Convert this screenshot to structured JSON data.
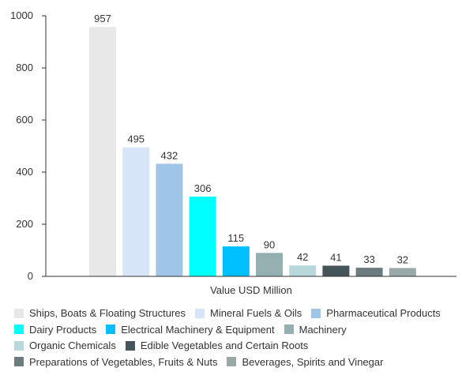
{
  "chart_data": {
    "type": "bar",
    "xlabel": "Value USD Million",
    "ylabel": "",
    "ylim": [
      0,
      1000
    ],
    "yticks": [
      0,
      200,
      400,
      600,
      800,
      1000
    ],
    "grid": false,
    "legend_position": "bottom",
    "series": [
      {
        "name": "Ships, Boats & Floating Structures",
        "value": 957,
        "color": "#e8e8e8"
      },
      {
        "name": "Mineral Fuels & Oils",
        "value": 495,
        "color": "#d6e6f8"
      },
      {
        "name": "Pharmaceutical Products",
        "value": 432,
        "color": "#9fc5e8"
      },
      {
        "name": "Dairy Products",
        "value": 306,
        "color": "#00ffff"
      },
      {
        "name": "Electrical Machinery & Equipment",
        "value": 115,
        "color": "#00bfff"
      },
      {
        "name": "Machinery",
        "value": 90,
        "color": "#95b0b0"
      },
      {
        "name": "Organic Chemicals",
        "value": 42,
        "color": "#b8d8dc"
      },
      {
        "name": "Edible Vegetables and Certain Roots",
        "value": 41,
        "color": "#46555a"
      },
      {
        "name": "Preparations of Vegetables, Fruits & Nuts",
        "value": 33,
        "color": "#6b7b7e"
      },
      {
        "name": "Beverages, Spirits and Vinegar",
        "value": 32,
        "color": "#9aa8a8"
      }
    ]
  }
}
